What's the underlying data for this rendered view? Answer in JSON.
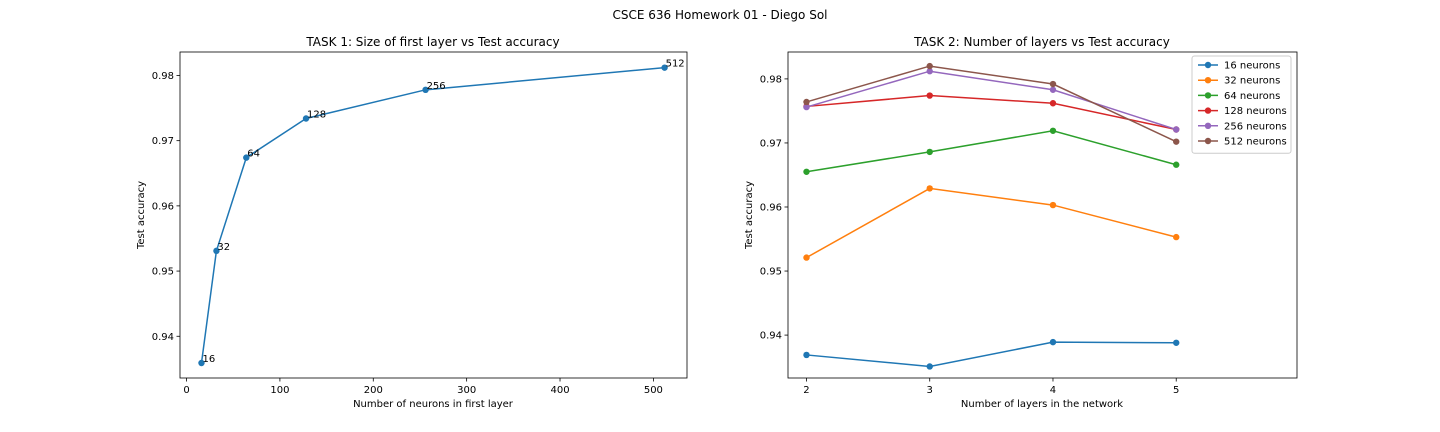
{
  "figure": {
    "title": "CSCE 636 Homework 01 - Diego Sol"
  },
  "chart_data": [
    {
      "type": "line",
      "title": "TASK 1: Size of first layer vs Test accuracy",
      "xlabel": "Number of neurons in first layer",
      "ylabel": "Test accuracy",
      "xlim": [
        -7,
        536
      ],
      "ylim": [
        0.9336,
        0.9836
      ],
      "xticks": [
        0,
        100,
        200,
        300,
        400,
        500
      ],
      "yticks": [
        0.94,
        0.95,
        0.96,
        0.97,
        0.98
      ],
      "grid": false,
      "color": "#1f77b4",
      "x": [
        16,
        32,
        64,
        128,
        256,
        512
      ],
      "y": [
        0.9359,
        0.9531,
        0.9674,
        0.9734,
        0.9778,
        0.9812
      ],
      "point_labels": [
        "16",
        "32",
        "64",
        "128",
        "256",
        "512"
      ]
    },
    {
      "type": "line",
      "title": "TASK 2: Number of layers vs Test accuracy",
      "xlabel": "Number of layers in the network",
      "ylabel": "Test accuracy",
      "xlim": [
        1.85,
        5.98
      ],
      "ylim": [
        0.9333,
        0.9842
      ],
      "xticks": [
        2,
        3,
        4,
        5
      ],
      "yticks": [
        0.94,
        0.95,
        0.96,
        0.97,
        0.98
      ],
      "grid": false,
      "legend_position": "top-right",
      "x": [
        2,
        3,
        4,
        5
      ],
      "series": [
        {
          "name": "16 neurons",
          "color": "#1f77b4",
          "values": [
            0.9369,
            0.9351,
            0.9389,
            0.9388
          ]
        },
        {
          "name": "32 neurons",
          "color": "#ff7f0e",
          "values": [
            0.9521,
            0.9629,
            0.9603,
            0.9553
          ]
        },
        {
          "name": "64 neurons",
          "color": "#2ca02c",
          "values": [
            0.9655,
            0.9686,
            0.9719,
            0.9666
          ]
        },
        {
          "name": "128 neurons",
          "color": "#d62728",
          "values": [
            0.9757,
            0.9774,
            0.9762,
            0.9721
          ]
        },
        {
          "name": "256 neurons",
          "color": "#9467bd",
          "values": [
            0.9756,
            0.9812,
            0.9783,
            0.9721
          ]
        },
        {
          "name": "512 neurons",
          "color": "#8c564b",
          "values": [
            0.9764,
            0.982,
            0.9792,
            0.9702
          ]
        }
      ]
    }
  ]
}
